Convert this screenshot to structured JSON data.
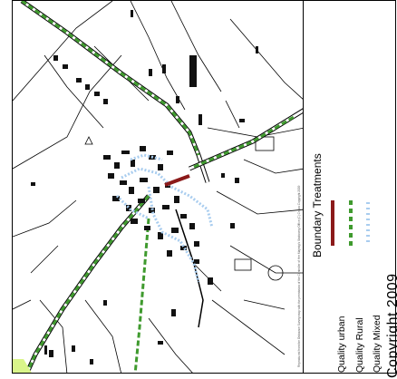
{
  "legend": {
    "title": "Boundary Treatments",
    "items": [
      {
        "label": "Quality urban",
        "color": "#8b1a1a",
        "style": "solid"
      },
      {
        "label": "Quality Rural",
        "color": "#3f9a2e",
        "style": "dashed"
      },
      {
        "label": "Quality Mixed",
        "color": "#a9cdef",
        "style": "dotted"
      }
    ]
  },
  "copyright": "Copyright 2009",
  "map": {
    "credit": "Reproduced from the Ordnance Survey map with the permission of the Controller of Her Majesty's Stationery Office (C) Crown Copyright 2009",
    "colors": {
      "streets": "#000000",
      "rural_boundary": "#3f9a2e",
      "urban_boundary": "#8b1a1a",
      "mixed_boundary": "#a9cdef",
      "inset_highlight": "#d9f58a"
    }
  }
}
